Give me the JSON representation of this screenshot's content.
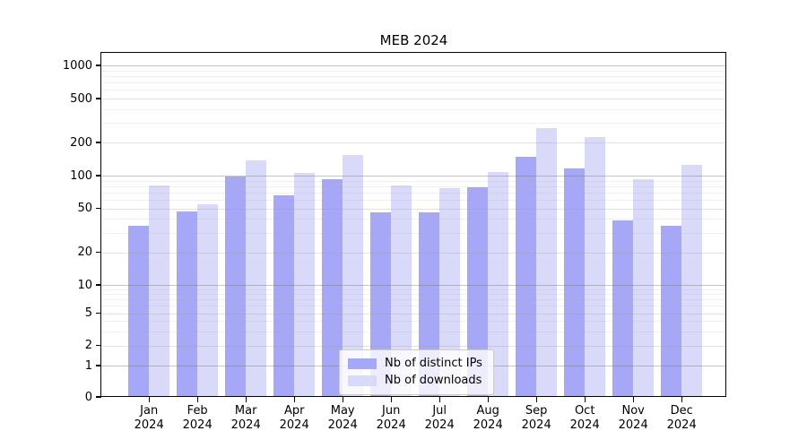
{
  "chart_data": {
    "type": "bar",
    "title": "MEB 2024",
    "categories": [
      "Jan",
      "Feb",
      "Mar",
      "Apr",
      "May",
      "Jun",
      "Jul",
      "Aug",
      "Sep",
      "Oct",
      "Nov",
      "Dec"
    ],
    "x_tick_year": "2024",
    "series": [
      {
        "name": "Nb of distinct IPs",
        "color": "#a7a7f7",
        "values": [
          35,
          47,
          99,
          66,
          93,
          46,
          46,
          78,
          149,
          117,
          39,
          35
        ]
      },
      {
        "name": "Nb of downloads",
        "color": "#d9d9fa",
        "values": [
          81,
          54,
          137,
          105,
          155,
          81,
          77,
          107,
          270,
          225,
          92,
          125
        ]
      }
    ],
    "y_tick_labels": [
      "0",
      "1",
      "2",
      "5",
      "10",
      "20",
      "50",
      "100",
      "200",
      "500",
      "1000"
    ],
    "y_ticks": [
      0,
      1,
      2,
      5,
      10,
      20,
      50,
      100,
      200,
      500,
      1000
    ],
    "yscale": "symlog",
    "ylim": [
      0,
      1300
    ],
    "grid": true,
    "legend_position": "lower center"
  }
}
